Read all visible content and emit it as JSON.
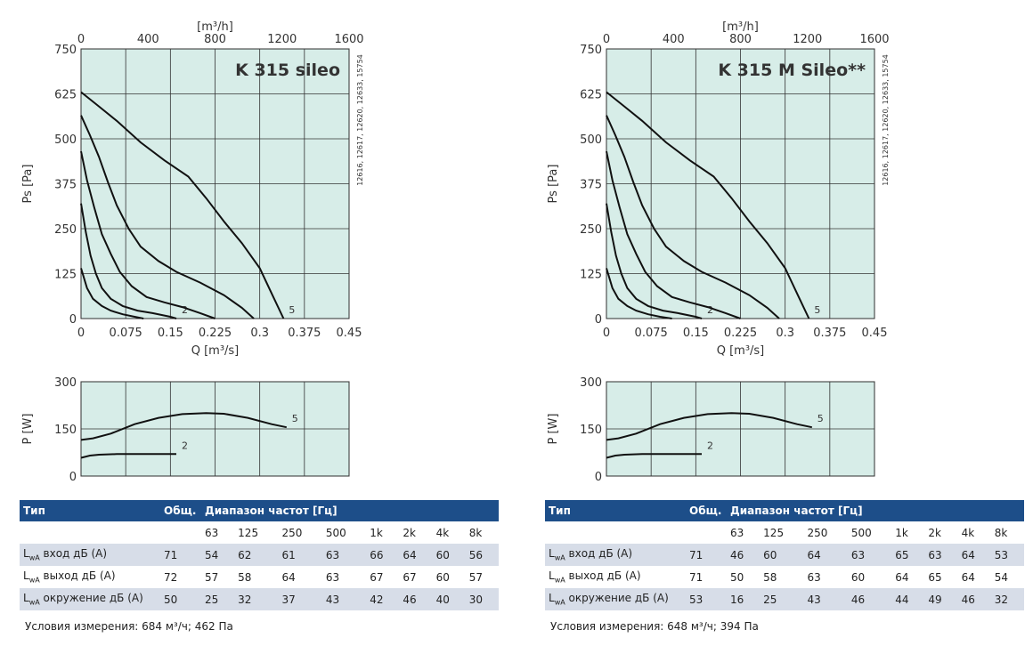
{
  "charts": [
    {
      "title": "K 315 sileo",
      "side_note": "12616, 12617, 12620, 12633, 15754",
      "note": "Условия измерения: 684 м³/ч; 462 Па",
      "table": {
        "head": [
          "Тип",
          "Общ.",
          "Диапазон частот [Гц]"
        ],
        "freqs": [
          "63",
          "125",
          "250",
          "500",
          "1k",
          "2k",
          "4k",
          "8k"
        ],
        "rows": [
          {
            "label": "L",
            "sub": "wA",
            "text": " вход дБ (А)",
            "total": "71",
            "vals": [
              "54",
              "62",
              "61",
              "63",
              "66",
              "64",
              "60",
              "56"
            ]
          },
          {
            "label": "L",
            "sub": "wA",
            "text": " выход дБ (А)",
            "total": "72",
            "vals": [
              "57",
              "58",
              "64",
              "63",
              "67",
              "67",
              "60",
              "57"
            ]
          },
          {
            "label": "L",
            "sub": "wA",
            "text": " окружение дБ (А)",
            "total": "50",
            "vals": [
              "25",
              "32",
              "37",
              "43",
              "42",
              "46",
              "40",
              "30"
            ]
          }
        ]
      }
    },
    {
      "title": "K 315 M Sileo**",
      "side_note": "12616, 12617, 12620, 12633, 15754",
      "note": "Условия измерения: 648 м³/ч; 394 Па",
      "table": {
        "head": [
          "Тип",
          "Общ.",
          "Диапазон частот [Гц]"
        ],
        "freqs": [
          "63",
          "125",
          "250",
          "500",
          "1k",
          "2k",
          "4k",
          "8k"
        ],
        "rows": [
          {
            "label": "L",
            "sub": "wA",
            "text": " вход дБ (А)",
            "total": "71",
            "vals": [
              "46",
              "60",
              "64",
              "63",
              "65",
              "63",
              "64",
              "53"
            ]
          },
          {
            "label": "L",
            "sub": "wA",
            "text": " выход дБ (А)",
            "total": "71",
            "vals": [
              "50",
              "58",
              "63",
              "60",
              "64",
              "65",
              "64",
              "54"
            ]
          },
          {
            "label": "L",
            "sub": "wA",
            "text": " окружение дБ (А)",
            "total": "53",
            "vals": [
              "16",
              "25",
              "43",
              "46",
              "44",
              "49",
              "46",
              "32"
            ]
          }
        ]
      }
    }
  ],
  "chart_data": [
    {
      "type": "line",
      "title": "K 315 sileo",
      "xlabel": "Q [m³/s]",
      "ylabel": "Ps [Pa]",
      "x2label": "[m³/h]",
      "xlim": [
        0,
        0.45
      ],
      "ylim": [
        0,
        750
      ],
      "x2lim": [
        0,
        1600
      ],
      "xticks": [
        0,
        0.075,
        0.15,
        0.225,
        0.3,
        0.375,
        0.45
      ],
      "yticks": [
        0,
        125,
        250,
        375,
        500,
        625,
        750
      ],
      "x2ticks": [
        0,
        400,
        800,
        1200,
        1600
      ],
      "grid": true,
      "series": [
        {
          "x": [
            0,
            0.01,
            0.02,
            0.035,
            0.05,
            0.07,
            0.09,
            0.105
          ],
          "y": [
            140,
            85,
            55,
            35,
            22,
            12,
            5,
            0
          ]
        },
        {
          "name": "2",
          "x": [
            0,
            0.008,
            0.016,
            0.025,
            0.035,
            0.05,
            0.07,
            0.095,
            0.12,
            0.15,
            0.16
          ],
          "y": [
            320,
            240,
            175,
            125,
            85,
            55,
            35,
            22,
            15,
            5,
            0
          ]
        },
        {
          "x": [
            0,
            0.01,
            0.022,
            0.035,
            0.05,
            0.065,
            0.085,
            0.11,
            0.14,
            0.17,
            0.2,
            0.225
          ],
          "y": [
            465,
            385,
            310,
            235,
            180,
            130,
            90,
            60,
            45,
            32,
            15,
            0
          ]
        },
        {
          "x": [
            0,
            0.015,
            0.03,
            0.045,
            0.06,
            0.08,
            0.1,
            0.13,
            0.16,
            0.2,
            0.24,
            0.27,
            0.29
          ],
          "y": [
            565,
            510,
            450,
            380,
            315,
            250,
            200,
            160,
            130,
            100,
            65,
            30,
            0
          ]
        },
        {
          "name": "5",
          "x": [
            0,
            0.03,
            0.06,
            0.1,
            0.14,
            0.18,
            0.21,
            0.24,
            0.27,
            0.3,
            0.32,
            0.34
          ],
          "y": [
            630,
            590,
            550,
            490,
            440,
            395,
            335,
            270,
            210,
            140,
            70,
            0
          ]
        }
      ]
    },
    {
      "type": "line",
      "xlabel": "",
      "ylabel": "P [W]",
      "xlim": [
        0,
        0.45
      ],
      "ylim": [
        0,
        300
      ],
      "yticks": [
        0,
        150,
        300
      ],
      "grid": true,
      "series": [
        {
          "name": "2",
          "x": [
            0,
            0.015,
            0.03,
            0.06,
            0.1,
            0.14,
            0.16
          ],
          "y": [
            58,
            65,
            68,
            70,
            70,
            70,
            70
          ]
        },
        {
          "name": "5",
          "x": [
            0,
            0.02,
            0.05,
            0.09,
            0.13,
            0.17,
            0.21,
            0.24,
            0.28,
            0.32,
            0.345
          ],
          "y": [
            115,
            120,
            135,
            165,
            185,
            197,
            200,
            198,
            185,
            165,
            155
          ]
        }
      ]
    },
    {
      "type": "line",
      "title": "K 315 M Sileo**",
      "xlabel": "Q [m³/s]",
      "ylabel": "Ps [Pa]",
      "x2label": "[m³/h]",
      "xlim": [
        0,
        0.45
      ],
      "ylim": [
        0,
        750
      ],
      "x2lim": [
        0,
        1600
      ],
      "xticks": [
        0,
        0.075,
        0.15,
        0.225,
        0.3,
        0.375,
        0.45
      ],
      "yticks": [
        0,
        125,
        250,
        375,
        500,
        625,
        750
      ],
      "x2ticks": [
        0,
        400,
        800,
        1200,
        1600
      ],
      "grid": true,
      "series": [
        {
          "x": [
            0,
            0.01,
            0.02,
            0.035,
            0.05,
            0.07,
            0.09,
            0.11
          ],
          "y": [
            140,
            85,
            55,
            35,
            22,
            12,
            5,
            0
          ]
        },
        {
          "name": "2",
          "x": [
            0,
            0.008,
            0.016,
            0.025,
            0.035,
            0.05,
            0.07,
            0.095,
            0.12,
            0.15,
            0.16
          ],
          "y": [
            320,
            240,
            175,
            125,
            85,
            55,
            35,
            22,
            15,
            5,
            0
          ]
        },
        {
          "x": [
            0,
            0.01,
            0.022,
            0.035,
            0.05,
            0.065,
            0.085,
            0.11,
            0.14,
            0.17,
            0.2,
            0.225
          ],
          "y": [
            465,
            385,
            310,
            235,
            180,
            130,
            90,
            60,
            45,
            32,
            15,
            0
          ]
        },
        {
          "x": [
            0,
            0.015,
            0.03,
            0.045,
            0.06,
            0.08,
            0.1,
            0.13,
            0.16,
            0.2,
            0.24,
            0.27,
            0.29
          ],
          "y": [
            565,
            510,
            450,
            380,
            315,
            250,
            200,
            160,
            130,
            100,
            65,
            30,
            0
          ]
        },
        {
          "name": "5",
          "x": [
            0,
            0.03,
            0.06,
            0.1,
            0.14,
            0.18,
            0.21,
            0.24,
            0.27,
            0.3,
            0.32,
            0.34
          ],
          "y": [
            630,
            590,
            550,
            490,
            440,
            395,
            335,
            270,
            210,
            140,
            70,
            0
          ]
        }
      ]
    },
    {
      "type": "line",
      "xlabel": "",
      "ylabel": "P [W]",
      "xlim": [
        0,
        0.45
      ],
      "ylim": [
        0,
        300
      ],
      "yticks": [
        0,
        150,
        300
      ],
      "grid": true,
      "series": [
        {
          "name": "2",
          "x": [
            0,
            0.015,
            0.03,
            0.06,
            0.1,
            0.14,
            0.16
          ],
          "y": [
            58,
            65,
            68,
            70,
            70,
            70,
            70
          ]
        },
        {
          "name": "5",
          "x": [
            0,
            0.02,
            0.05,
            0.09,
            0.13,
            0.17,
            0.21,
            0.24,
            0.28,
            0.32,
            0.345
          ],
          "y": [
            115,
            120,
            135,
            165,
            185,
            197,
            200,
            198,
            185,
            165,
            155
          ]
        }
      ]
    }
  ]
}
